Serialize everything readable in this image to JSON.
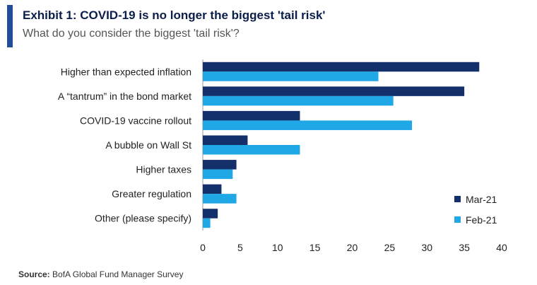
{
  "header": {
    "title": "Exhibit 1: COVID-19 is no longer the biggest 'tail risk'",
    "subtitle": "What do you consider the biggest 'tail risk'?"
  },
  "footer": {
    "source_label": "Source:",
    "source_text": "BofA Global Fund Manager Survey"
  },
  "colors": {
    "accent": "#1f4e97",
    "series_mar": "#13306b",
    "series_feb": "#1fa7e6"
  },
  "chart_data": {
    "type": "bar",
    "orientation": "horizontal",
    "title": "Exhibit 1: COVID-19 is no longer the biggest 'tail risk'",
    "subtitle": "What do you consider the biggest 'tail risk'?",
    "categories": [
      "Higher than expected inflation",
      "A “tantrum” in the bond market",
      "COVID-19 vaccine rollout",
      "A bubble on Wall St",
      "Higher taxes",
      "Greater regulation",
      "Other (please specify)"
    ],
    "series": [
      {
        "name": "Mar-21",
        "color": "#13306b",
        "values": [
          37,
          35,
          13,
          6,
          4.5,
          2.5,
          2
        ]
      },
      {
        "name": "Feb-21",
        "color": "#1fa7e6",
        "values": [
          23.5,
          25.5,
          28,
          13,
          4,
          4.5,
          1
        ]
      }
    ],
    "xlim": [
      0,
      40
    ],
    "xticks": [
      0,
      5,
      10,
      15,
      20,
      25,
      30,
      35,
      40
    ],
    "xlabel": "",
    "ylabel": "",
    "grid": false,
    "legend_position": "bottom-right"
  }
}
